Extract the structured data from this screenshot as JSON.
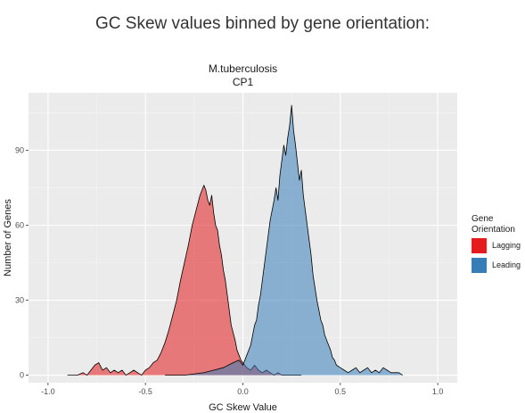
{
  "chart_data": {
    "type": "area",
    "title": "GC Skew values binned by gene orientation:",
    "subtitle_lines": [
      "M.tuberculosis",
      "CP1"
    ],
    "xlabel": "GC Skew Value",
    "ylabel": "Number of Genes",
    "xlim": [
      -1.1,
      1.1
    ],
    "ylim": [
      -3,
      113
    ],
    "x_ticks": [
      -1.0,
      -0.5,
      0.0,
      0.5,
      1.0
    ],
    "x_tick_labels": [
      "-1.0",
      "-0.5",
      "0.0",
      "0.5",
      "1.0"
    ],
    "y_ticks": [
      0,
      30,
      60,
      90
    ],
    "y_tick_labels": [
      "0",
      "30",
      "60",
      "90"
    ],
    "grid": true,
    "legend_position": "right",
    "legend_title_lines": [
      "Gene",
      "Orientation"
    ],
    "series": [
      {
        "name": "Lagging",
        "color": "#e41a1c",
        "x": [
          -0.9,
          -0.85,
          -0.82,
          -0.8,
          -0.78,
          -0.76,
          -0.74,
          -0.72,
          -0.7,
          -0.68,
          -0.66,
          -0.64,
          -0.62,
          -0.6,
          -0.58,
          -0.56,
          -0.54,
          -0.52,
          -0.5,
          -0.48,
          -0.46,
          -0.44,
          -0.42,
          -0.4,
          -0.38,
          -0.36,
          -0.34,
          -0.32,
          -0.3,
          -0.28,
          -0.26,
          -0.24,
          -0.22,
          -0.2,
          -0.19,
          -0.18,
          -0.17,
          -0.16,
          -0.15,
          -0.14,
          -0.13,
          -0.12,
          -0.11,
          -0.1,
          -0.09,
          -0.08,
          -0.07,
          -0.06,
          -0.05,
          -0.04,
          -0.03,
          -0.02,
          -0.01,
          0.0,
          0.02,
          0.04,
          0.06,
          0.08,
          0.1,
          0.12,
          0.14,
          0.16,
          0.18,
          0.2,
          0.25,
          0.3
        ],
        "values": [
          0,
          0,
          1,
          0,
          2,
          4,
          5,
          2,
          3,
          1,
          2,
          1,
          2,
          0,
          1,
          2,
          1,
          0,
          2,
          3,
          5,
          6,
          9,
          13,
          18,
          24,
          30,
          38,
          45,
          52,
          60,
          66,
          72,
          76,
          74,
          70,
          68,
          72,
          65,
          60,
          58,
          52,
          48,
          42,
          38,
          32,
          26,
          20,
          17,
          14,
          10,
          8,
          6,
          5,
          3,
          2,
          4,
          2,
          1,
          2,
          1,
          0,
          1,
          0,
          0,
          0
        ]
      },
      {
        "name": "Leading",
        "color": "#377eb8",
        "x": [
          -0.4,
          -0.3,
          -0.2,
          -0.15,
          -0.1,
          -0.05,
          -0.02,
          0.0,
          0.02,
          0.04,
          0.05,
          0.06,
          0.07,
          0.08,
          0.09,
          0.1,
          0.11,
          0.12,
          0.13,
          0.14,
          0.15,
          0.16,
          0.17,
          0.18,
          0.19,
          0.2,
          0.21,
          0.22,
          0.23,
          0.24,
          0.25,
          0.26,
          0.27,
          0.28,
          0.29,
          0.3,
          0.31,
          0.32,
          0.33,
          0.34,
          0.35,
          0.36,
          0.37,
          0.38,
          0.39,
          0.4,
          0.41,
          0.42,
          0.43,
          0.44,
          0.45,
          0.46,
          0.47,
          0.48,
          0.5,
          0.52,
          0.54,
          0.56,
          0.58,
          0.6,
          0.62,
          0.64,
          0.66,
          0.68,
          0.7,
          0.72,
          0.74,
          0.76,
          0.78,
          0.8,
          0.82
        ],
        "values": [
          0,
          0,
          1,
          2,
          3,
          5,
          6,
          4,
          8,
          12,
          16,
          20,
          22,
          28,
          32,
          38,
          44,
          50,
          56,
          62,
          66,
          70,
          75,
          70,
          80,
          86,
          92,
          88,
          95,
          100,
          108,
          98,
          92,
          85,
          78,
          82,
          72,
          66,
          60,
          54,
          48,
          40,
          35,
          30,
          26,
          22,
          20,
          16,
          14,
          12,
          10,
          7,
          6,
          4,
          3,
          2,
          1,
          2,
          3,
          1,
          2,
          3,
          1,
          2,
          1,
          3,
          2,
          1,
          1,
          1,
          0
        ]
      }
    ]
  }
}
